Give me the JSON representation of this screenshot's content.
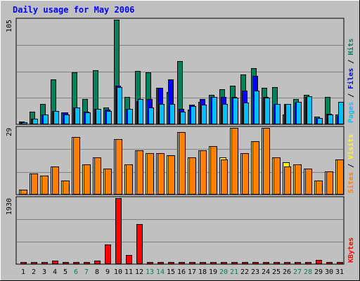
{
  "chart_data": [
    {
      "type": "bar",
      "title": "Daily usage for May 2006",
      "categories": [
        "1",
        "2",
        "3",
        "4",
        "5",
        "6",
        "7",
        "8",
        "9",
        "10",
        "11",
        "12",
        "13",
        "14",
        "15",
        "16",
        "17",
        "18",
        "19",
        "20",
        "21",
        "22",
        "23",
        "24",
        "25",
        "26",
        "27",
        "28",
        "29",
        "30",
        "31"
      ],
      "weekend_days": [
        "6",
        "7",
        "13",
        "14",
        "20",
        "21",
        "27",
        "28"
      ],
      "ymax_label": "105",
      "ymax": 105,
      "legend": [
        "Pages",
        "Files",
        "Hits"
      ],
      "series": [
        {
          "name": "Hits",
          "color": "#00805c",
          "values": [
            2,
            12,
            20,
            45,
            11,
            52,
            25,
            54,
            16,
            105,
            27,
            53,
            52,
            36,
            32,
            63,
            14,
            22,
            29,
            35,
            38,
            50,
            56,
            36,
            37,
            9,
            25,
            29,
            7,
            27,
            9
          ]
        },
        {
          "name": "Files",
          "color": "#0000ff",
          "values": [
            1,
            5,
            9,
            13,
            11,
            16,
            12,
            15,
            14,
            38,
            15,
            23,
            25,
            36,
            45,
            15,
            19,
            25,
            27,
            27,
            27,
            33,
            48,
            27,
            20,
            20,
            21,
            27,
            6,
            10,
            8
          ]
        },
        {
          "name": "Pages",
          "color": "#00c0ff",
          "values": [
            1,
            5,
            9,
            13,
            9,
            16,
            11,
            15,
            13,
            37,
            15,
            25,
            16,
            20,
            20,
            12,
            18,
            19,
            27,
            20,
            26,
            21,
            33,
            26,
            20,
            20,
            22,
            28,
            6,
            9,
            22
          ]
        }
      ]
    },
    {
      "type": "bar",
      "ymax_label": "29",
      "ymax": 29,
      "legend": [
        "Sites",
        "Visits"
      ],
      "series": [
        {
          "name": "Visits",
          "color": "#ffff00",
          "values": [
            2,
            9,
            8,
            12,
            6,
            25,
            13,
            16,
            11,
            24,
            13,
            19,
            18,
            18,
            17,
            27,
            16,
            19,
            21,
            16,
            29,
            18,
            23,
            29,
            16,
            14,
            13,
            11,
            6,
            10,
            15
          ]
        },
        {
          "name": "Sites",
          "color": "#ff8000",
          "values": [
            2,
            9,
            8,
            12,
            6,
            25,
            13,
            16,
            11,
            24,
            13,
            19,
            18,
            18,
            17,
            27,
            16,
            19,
            21,
            15,
            29,
            18,
            23,
            29,
            16,
            12,
            13,
            11,
            6,
            10,
            15
          ]
        }
      ]
    },
    {
      "type": "bar",
      "ymax_label": "1930",
      "ymax": 1930,
      "legend": [
        "KBytes"
      ],
      "series": [
        {
          "name": "KBytes",
          "color": "#ff0000",
          "values": [
            20,
            20,
            20,
            80,
            20,
            20,
            20,
            80,
            570,
            1930,
            250,
            1170,
            20,
            20,
            30,
            20,
            30,
            20,
            20,
            20,
            30,
            40,
            30,
            20,
            20,
            20,
            20,
            20,
            110,
            20,
            20
          ]
        }
      ]
    }
  ]
}
